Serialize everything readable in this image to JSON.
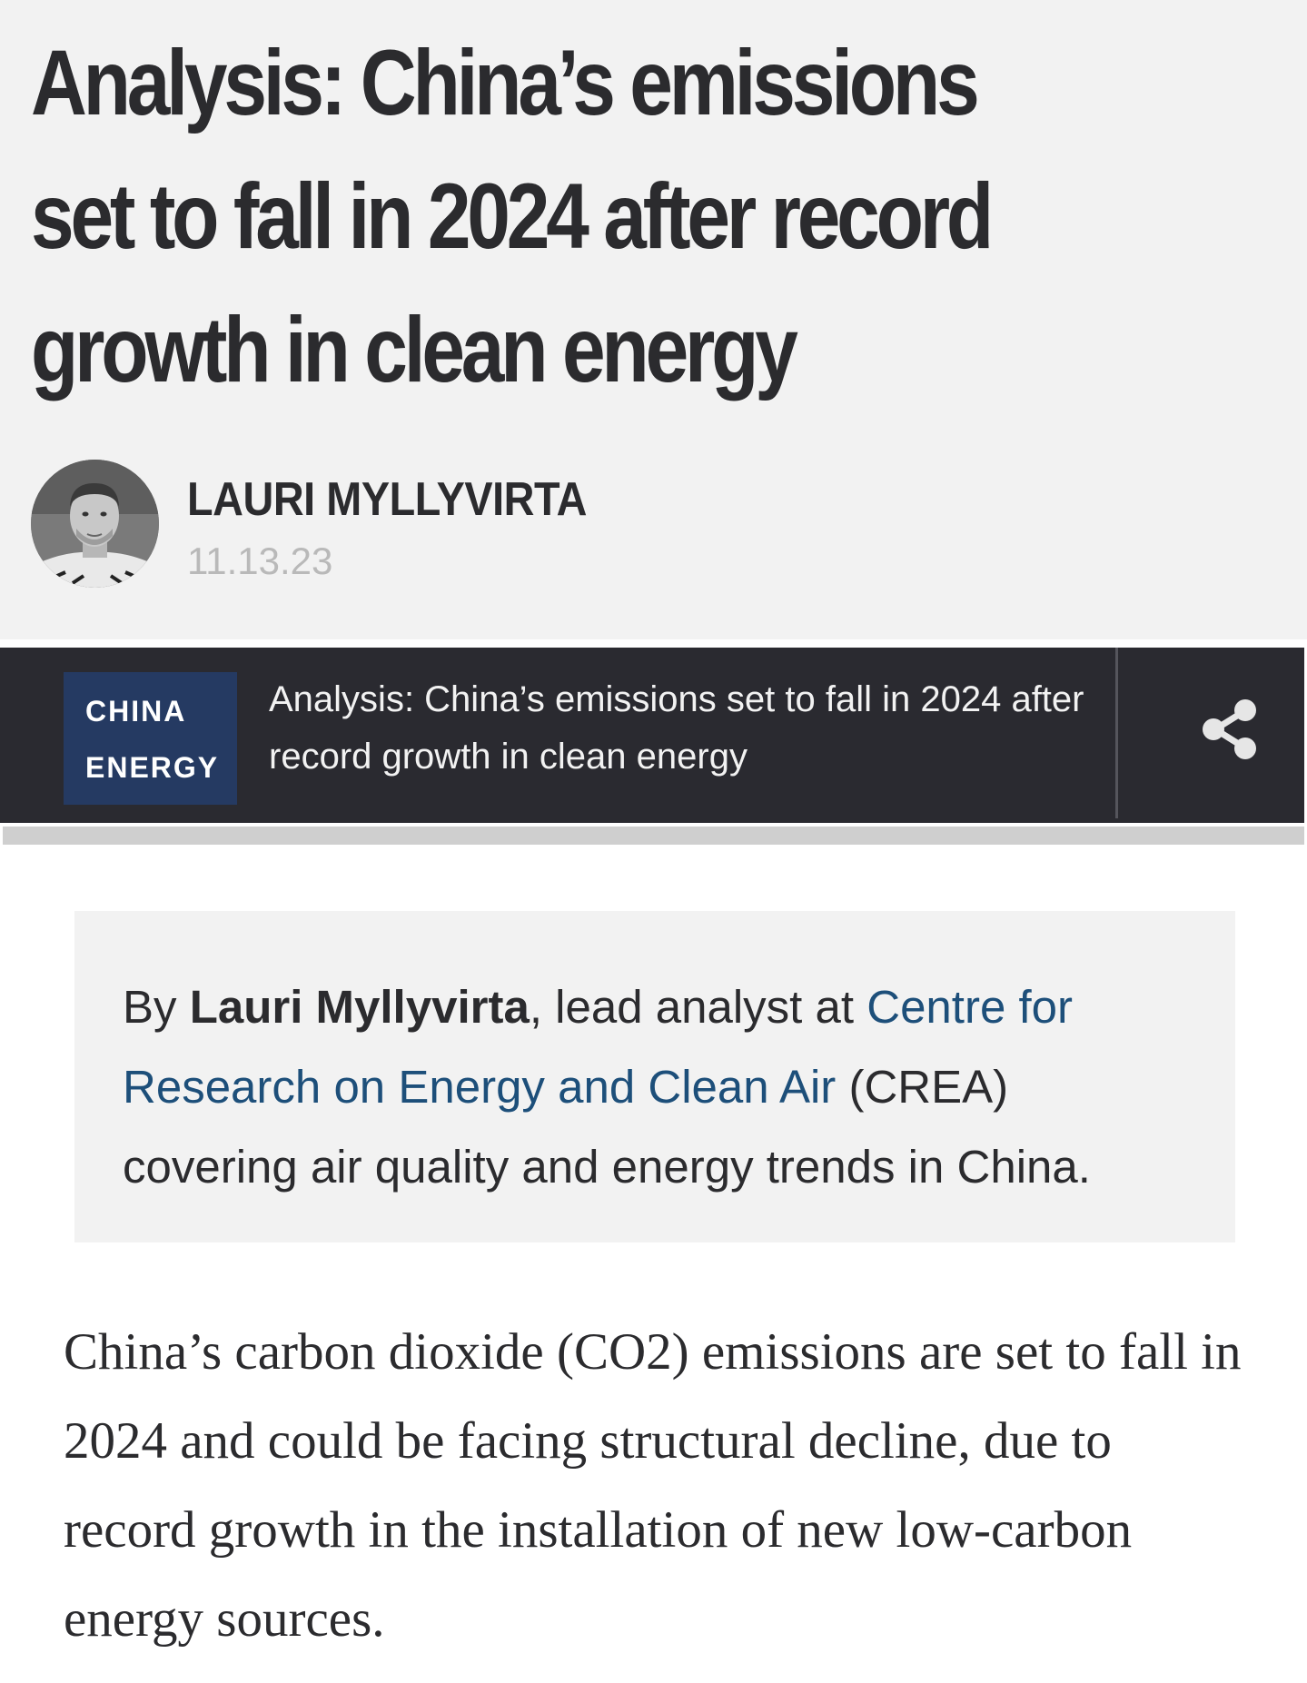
{
  "header": {
    "headline": "Analysis: China’s emissions set to fall in 2024 after record growth in clean energy",
    "author": {
      "name": "LAURI MYLLYVIRTA",
      "date": "11.13.23"
    }
  },
  "nav_bar": {
    "category_line1": "CHINA",
    "category_line2": "ENERGY",
    "article_title": "Analysis: China’s emissions set to fall in 2024 after record growth in clean energy",
    "share_icon": "share-icon"
  },
  "byline": {
    "prefix": "By ",
    "author": "Lauri Myllyvirta",
    "role": ", lead analyst at ",
    "org_link": "Centre for Research on Energy and Clean Air",
    "org_abbr": " (CREA)",
    "suffix": " covering air quality and energy trends in China."
  },
  "body": {
    "paragraph_1": "China’s carbon dioxide (CO2) emissions are set to fall in 2024 and could be facing structural decline, due to record growth in the installation of new low-carbon energy sources."
  },
  "colors": {
    "header_bg": "#f2f2f2",
    "nav_bg": "#2a2a30",
    "badge_bg": "#253a62",
    "link": "#1d4f7a",
    "text": "#2b2b2e",
    "date": "#b9b9b9"
  }
}
